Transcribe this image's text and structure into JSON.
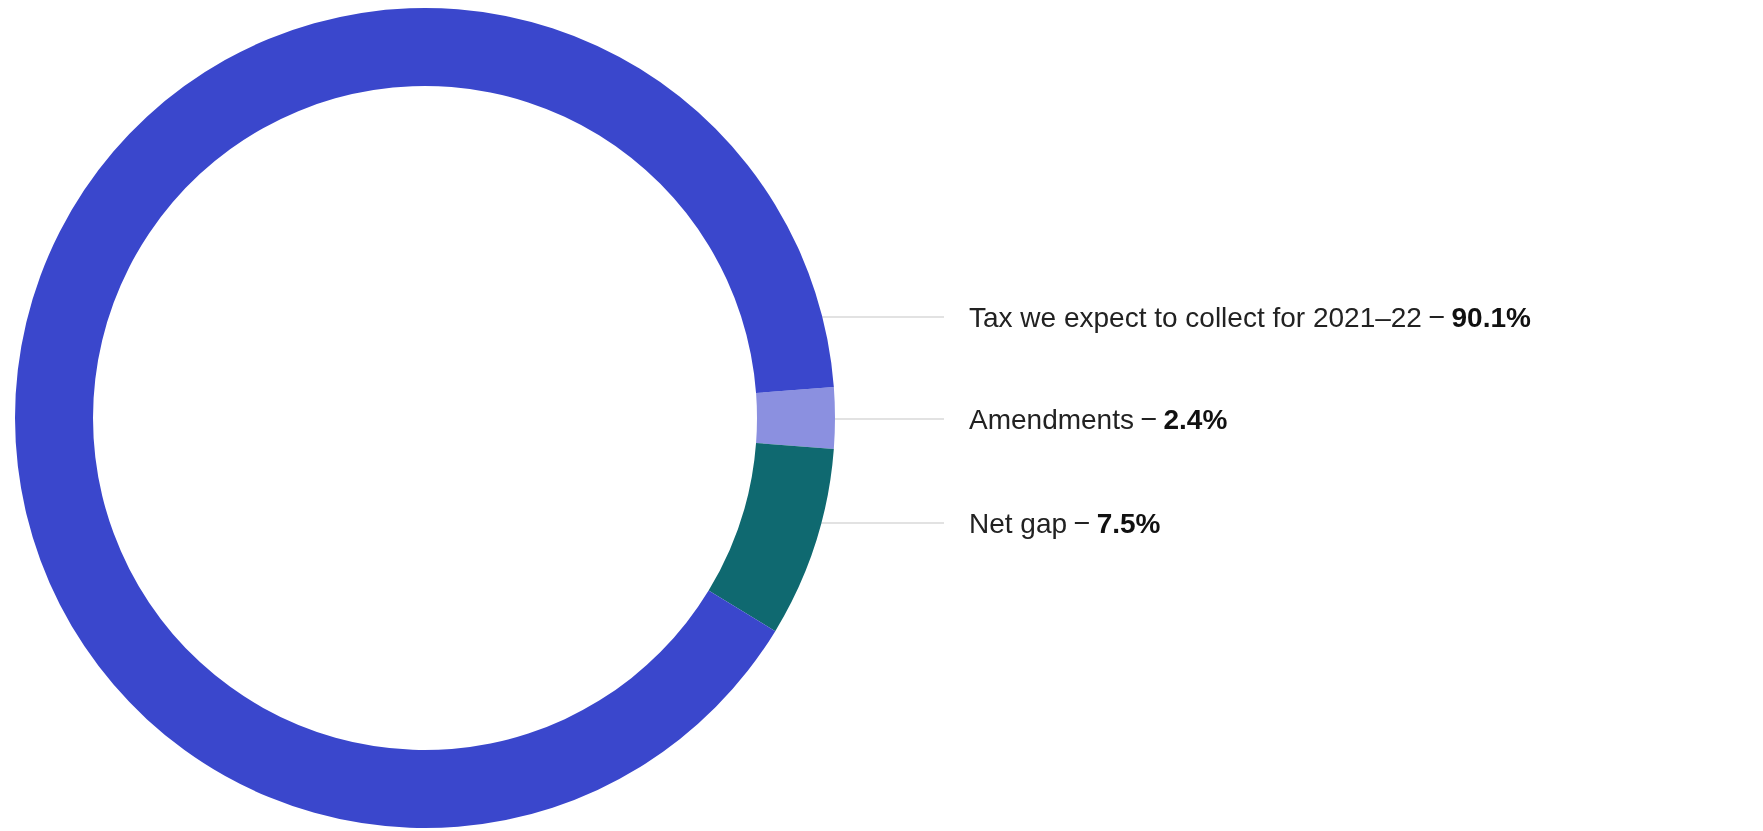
{
  "chart_data": {
    "type": "donut",
    "categories": [
      "Amendments",
      "Net gap",
      "Tax we expect to collect for 2021–22"
    ],
    "values": [
      2.4,
      7.5,
      90.1
    ],
    "colors": [
      "#8b90e0",
      "#0f6970",
      "#3a47cc"
    ],
    "value_labels": [
      "2.4%",
      "7.5%",
      "90.1%"
    ],
    "legend": false
  }
}
